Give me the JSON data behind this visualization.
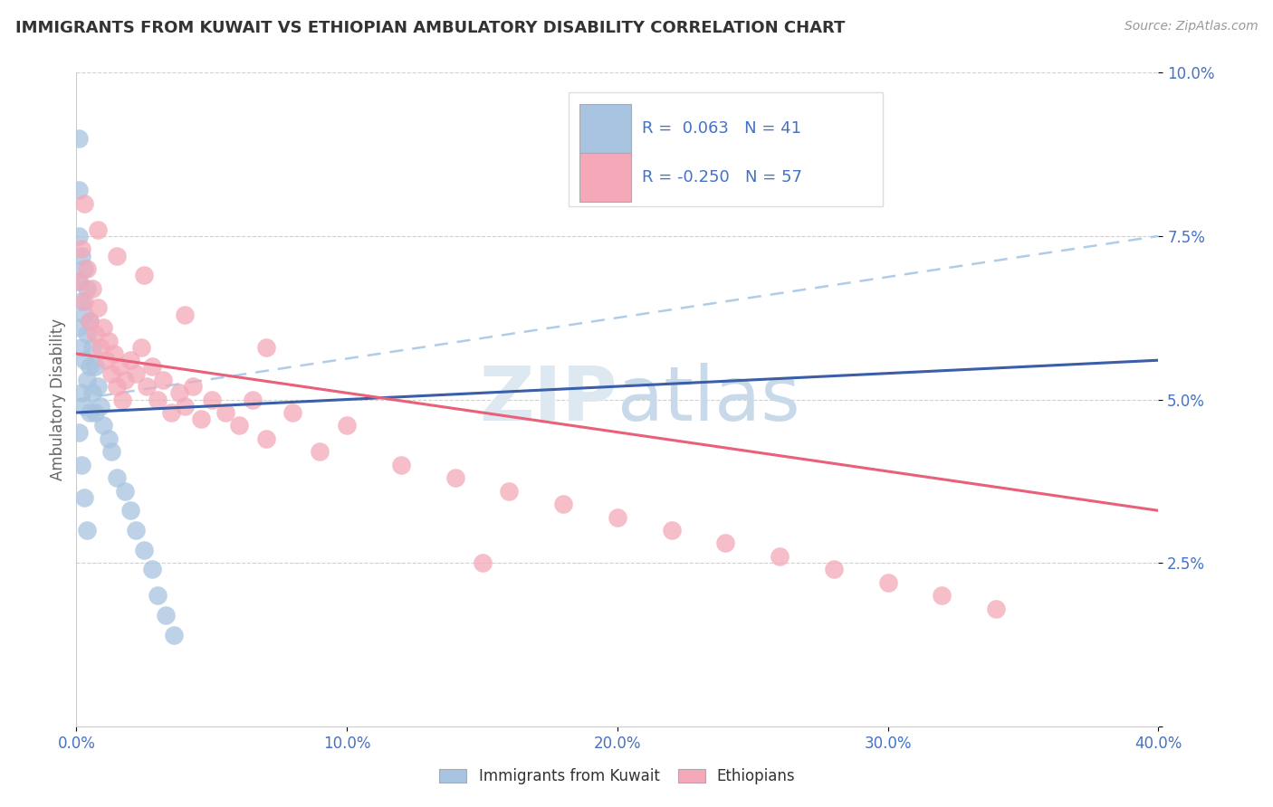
{
  "title": "IMMIGRANTS FROM KUWAIT VS ETHIOPIAN AMBULATORY DISABILITY CORRELATION CHART",
  "source": "Source: ZipAtlas.com",
  "ylabel": "Ambulatory Disability",
  "xlim": [
    0.0,
    0.4
  ],
  "ylim": [
    0.0,
    0.1
  ],
  "xticks": [
    0.0,
    0.1,
    0.2,
    0.3,
    0.4
  ],
  "yticks": [
    0.0,
    0.025,
    0.05,
    0.075,
    0.1
  ],
  "xtick_labels": [
    "0.0%",
    "10.0%",
    "20.0%",
    "30.0%",
    "40.0%"
  ],
  "ytick_labels": [
    "",
    "2.5%",
    "5.0%",
    "7.5%",
    "10.0%"
  ],
  "legend_labels": [
    "Immigrants from Kuwait",
    "Ethiopians"
  ],
  "r_blue": 0.063,
  "n_blue": 41,
  "r_pink": -0.25,
  "n_pink": 57,
  "blue_color": "#a8c4e0",
  "pink_color": "#f4a8b8",
  "blue_line_color": "#3a5fa8",
  "pink_line_color": "#e8607a",
  "blue_dash_color": "#b0cce8",
  "watermark_color": "#dde8f0",
  "blue_line_x0": 0.0,
  "blue_line_y0": 0.048,
  "blue_line_x1": 0.4,
  "blue_line_y1": 0.056,
  "pink_line_x0": 0.0,
  "pink_line_y0": 0.057,
  "pink_line_x1": 0.4,
  "pink_line_y1": 0.033,
  "dash_line_x0": 0.0,
  "dash_line_y0": 0.05,
  "dash_line_x1": 0.4,
  "dash_line_y1": 0.075,
  "blue_x": [
    0.001,
    0.001,
    0.001,
    0.001,
    0.001,
    0.002,
    0.002,
    0.002,
    0.002,
    0.003,
    0.003,
    0.003,
    0.003,
    0.004,
    0.004,
    0.004,
    0.005,
    0.005,
    0.005,
    0.006,
    0.006,
    0.007,
    0.007,
    0.008,
    0.009,
    0.01,
    0.012,
    0.013,
    0.015,
    0.018,
    0.02,
    0.022,
    0.025,
    0.028,
    0.03,
    0.033,
    0.036,
    0.001,
    0.002,
    0.003,
    0.004
  ],
  "blue_y": [
    0.09,
    0.082,
    0.075,
    0.068,
    0.061,
    0.072,
    0.065,
    0.058,
    0.051,
    0.07,
    0.063,
    0.056,
    0.049,
    0.067,
    0.06,
    0.053,
    0.062,
    0.055,
    0.048,
    0.058,
    0.051,
    0.055,
    0.048,
    0.052,
    0.049,
    0.046,
    0.044,
    0.042,
    0.038,
    0.036,
    0.033,
    0.03,
    0.027,
    0.024,
    0.02,
    0.017,
    0.014,
    0.045,
    0.04,
    0.035,
    0.03
  ],
  "pink_x": [
    0.001,
    0.002,
    0.003,
    0.004,
    0.005,
    0.006,
    0.007,
    0.008,
    0.009,
    0.01,
    0.011,
    0.012,
    0.013,
    0.014,
    0.015,
    0.016,
    0.017,
    0.018,
    0.02,
    0.022,
    0.024,
    0.026,
    0.028,
    0.03,
    0.032,
    0.035,
    0.038,
    0.04,
    0.043,
    0.046,
    0.05,
    0.055,
    0.06,
    0.065,
    0.07,
    0.08,
    0.09,
    0.1,
    0.12,
    0.14,
    0.16,
    0.18,
    0.2,
    0.22,
    0.24,
    0.26,
    0.28,
    0.3,
    0.32,
    0.34,
    0.003,
    0.008,
    0.015,
    0.025,
    0.04,
    0.07,
    0.15
  ],
  "pink_y": [
    0.068,
    0.073,
    0.065,
    0.07,
    0.062,
    0.067,
    0.06,
    0.064,
    0.058,
    0.061,
    0.056,
    0.059,
    0.054,
    0.057,
    0.052,
    0.055,
    0.05,
    0.053,
    0.056,
    0.054,
    0.058,
    0.052,
    0.055,
    0.05,
    0.053,
    0.048,
    0.051,
    0.049,
    0.052,
    0.047,
    0.05,
    0.048,
    0.046,
    0.05,
    0.044,
    0.048,
    0.042,
    0.046,
    0.04,
    0.038,
    0.036,
    0.034,
    0.032,
    0.03,
    0.028,
    0.026,
    0.024,
    0.022,
    0.02,
    0.018,
    0.08,
    0.076,
    0.072,
    0.069,
    0.063,
    0.058,
    0.025
  ]
}
